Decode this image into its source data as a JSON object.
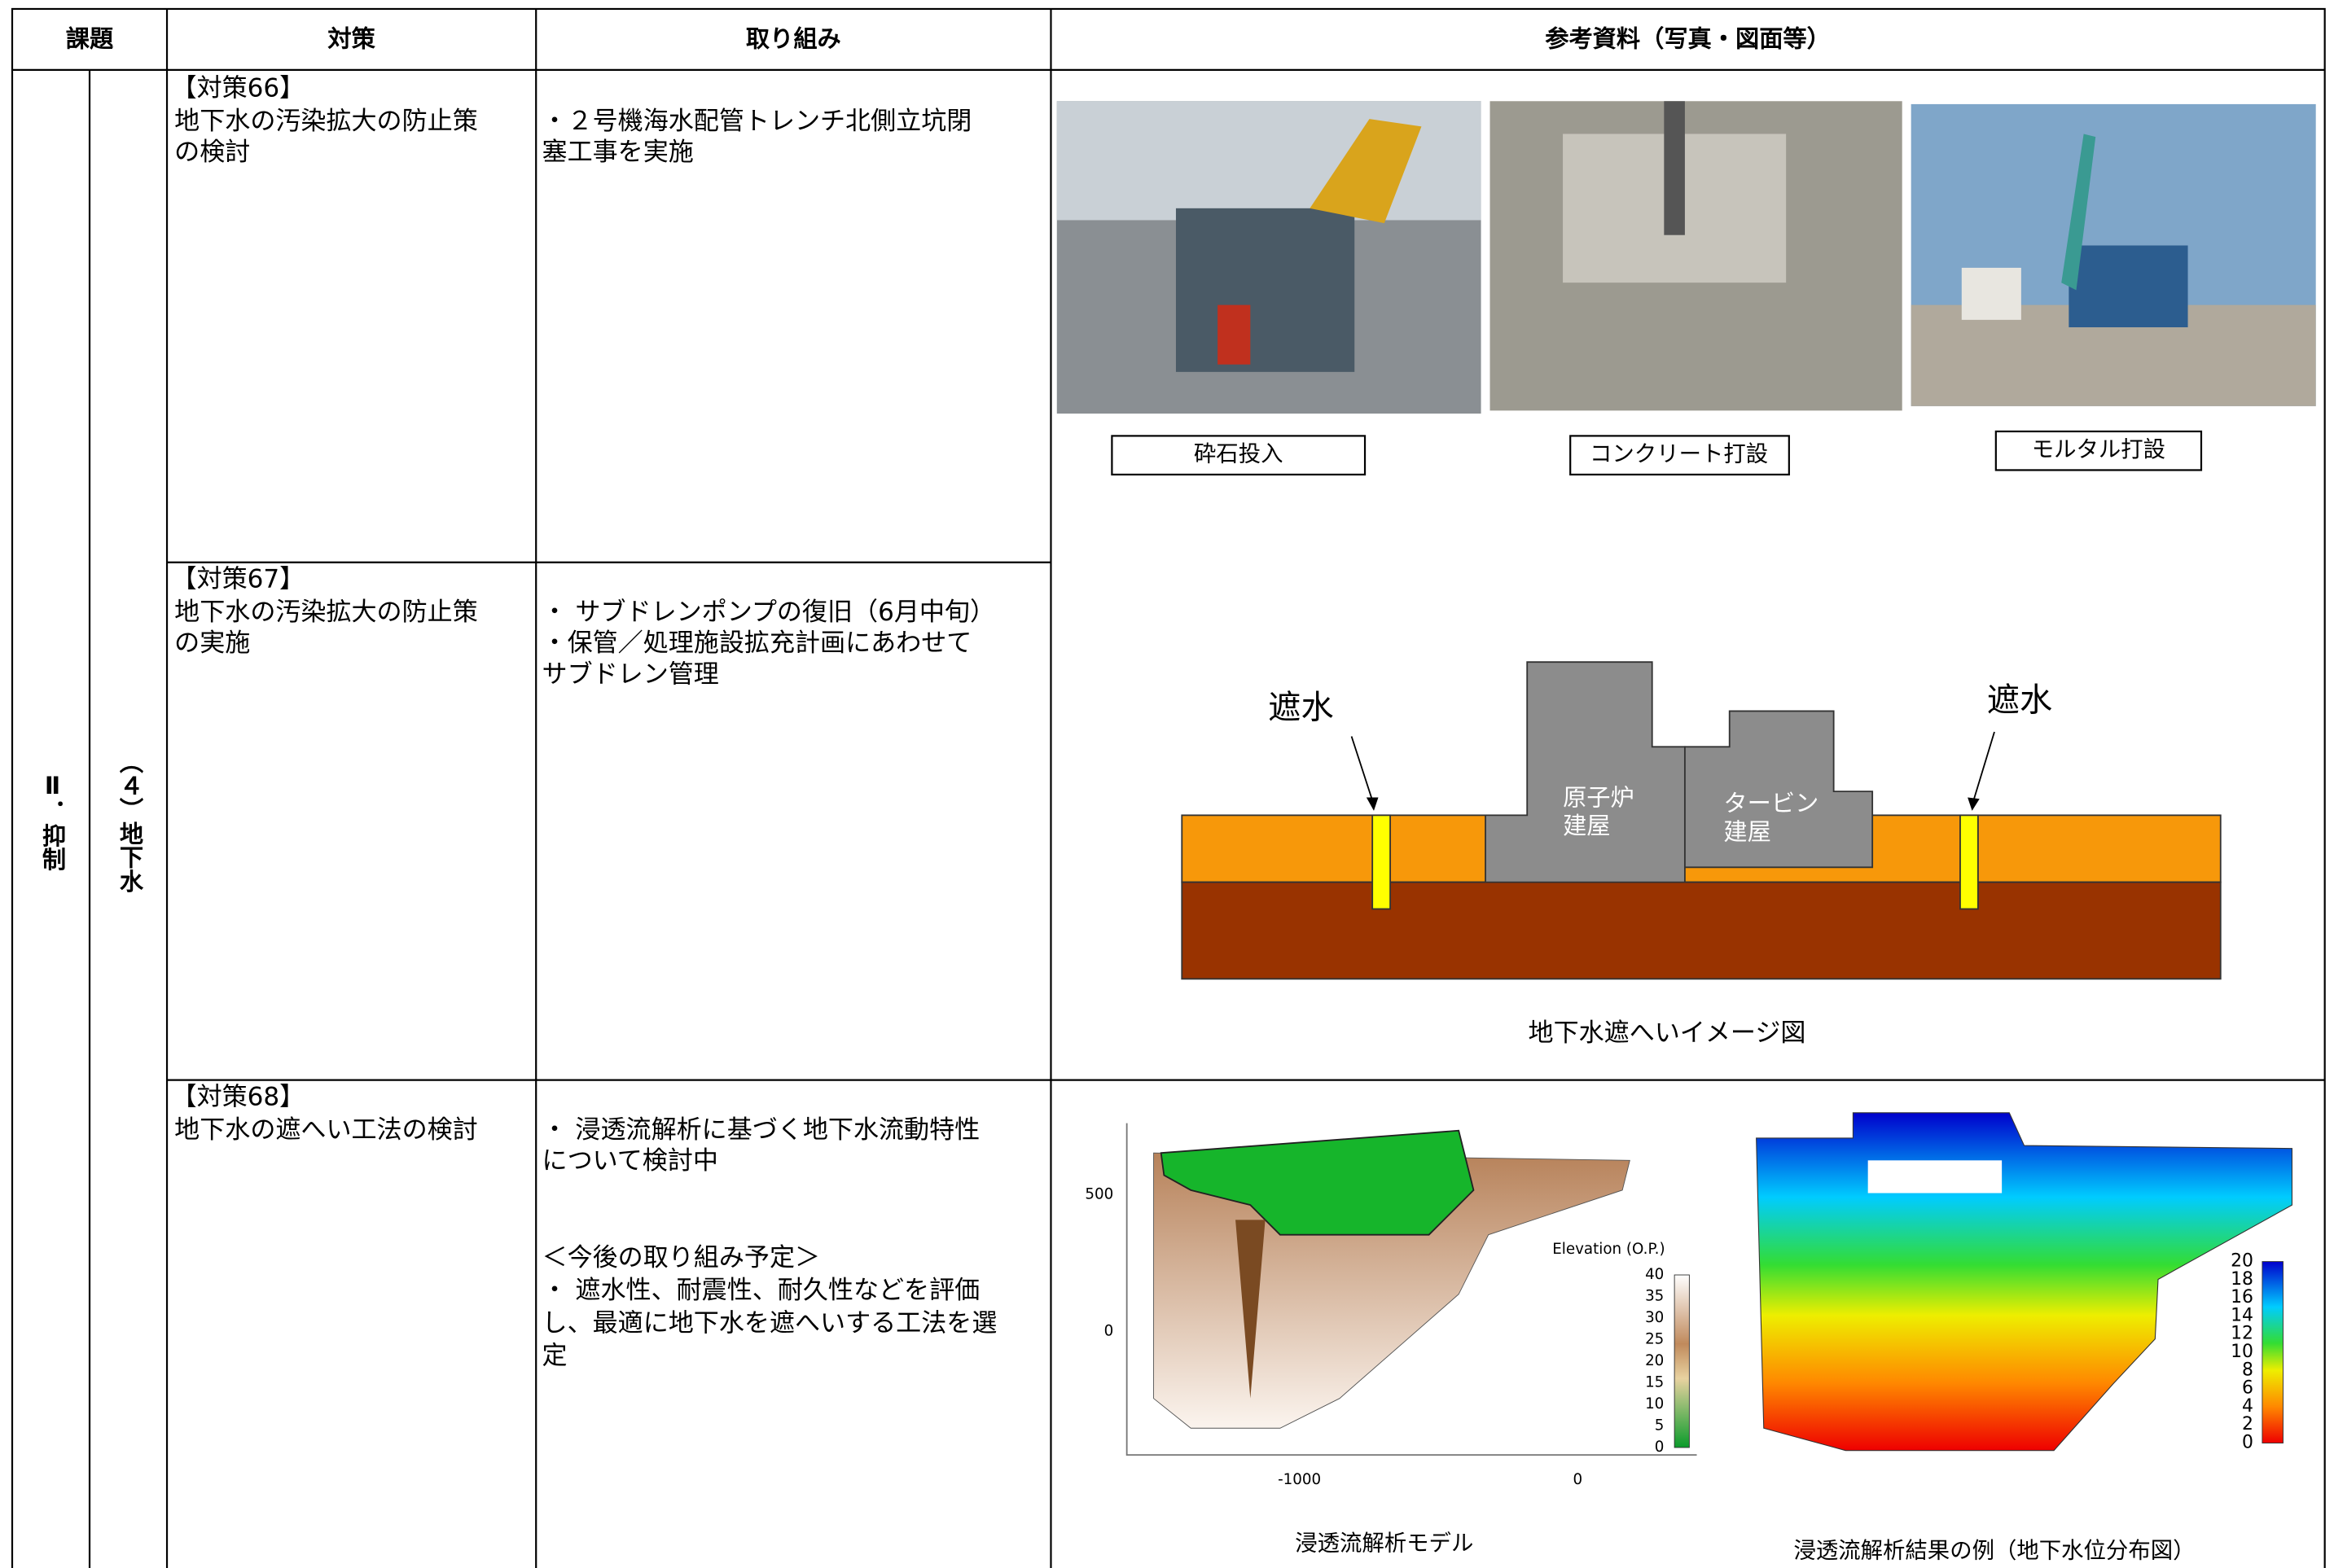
{
  "header": {
    "columns": [
      "課題",
      "対策",
      "取り組み",
      "参考資料（写真・図面等）"
    ]
  },
  "category": {
    "main": "Ⅱ．抑制",
    "sub": "（４）地下水"
  },
  "rows": [
    {
      "measure_no": "【対策66】",
      "measure_lines": [
        "地下水の汚染拡大の防止策",
        "の検討"
      ],
      "action_lines": [
        "・２号機海水配管トレンチ北側立坑閉",
        "塞工事を実施"
      ]
    },
    {
      "measure_no": "【対策67】",
      "measure_lines": [
        "地下水の汚染拡大の防止策",
        "の実施"
      ],
      "action_lines": [
        "・ サブドレンポンプの復旧（6月中旬）",
        "・保管／処理施設拡充計画にあわせて",
        "サブドレン管理"
      ]
    },
    {
      "measure_no": "【対策68】",
      "measure_lines": [
        "地下水の遮へい工法の検討"
      ],
      "action_lines": [
        "・ 浸透流解析に基づく地下水流動特性",
        "について検討中"
      ],
      "plan_lines": [
        "＜今後の取り組み予定＞",
        "・ 遮水性、耐震性、耐久性などを評価",
        "し、最適に地下水を遮へいする工法を選",
        "定"
      ]
    }
  ],
  "references": {
    "photo_captions": [
      "砕石投入",
      "コンクリート打設",
      "モルタル打設"
    ],
    "diagram": {
      "shield_left": "遮水",
      "shield_right": "遮水",
      "reactor_lines": [
        "原子炉",
        "建屋"
      ],
      "turbine_lines": [
        "タービン",
        "建屋"
      ],
      "caption": "地下水遮へいイメージ図"
    },
    "model": {
      "yticks": [
        500,
        0
      ],
      "xticks": [
        -1000,
        0
      ],
      "legend_title": "Elevation (O.P.)",
      "colorbar_ticks": [
        40,
        35,
        30,
        25,
        20,
        15,
        10,
        5,
        0
      ],
      "caption": "浸透流解析モデル"
    },
    "result": {
      "colorbar_ticks": [
        20,
        18,
        16,
        14,
        12,
        10,
        8,
        6,
        4,
        2,
        0
      ],
      "caption": "浸透流解析結果の例（地下水位分布図）"
    }
  }
}
